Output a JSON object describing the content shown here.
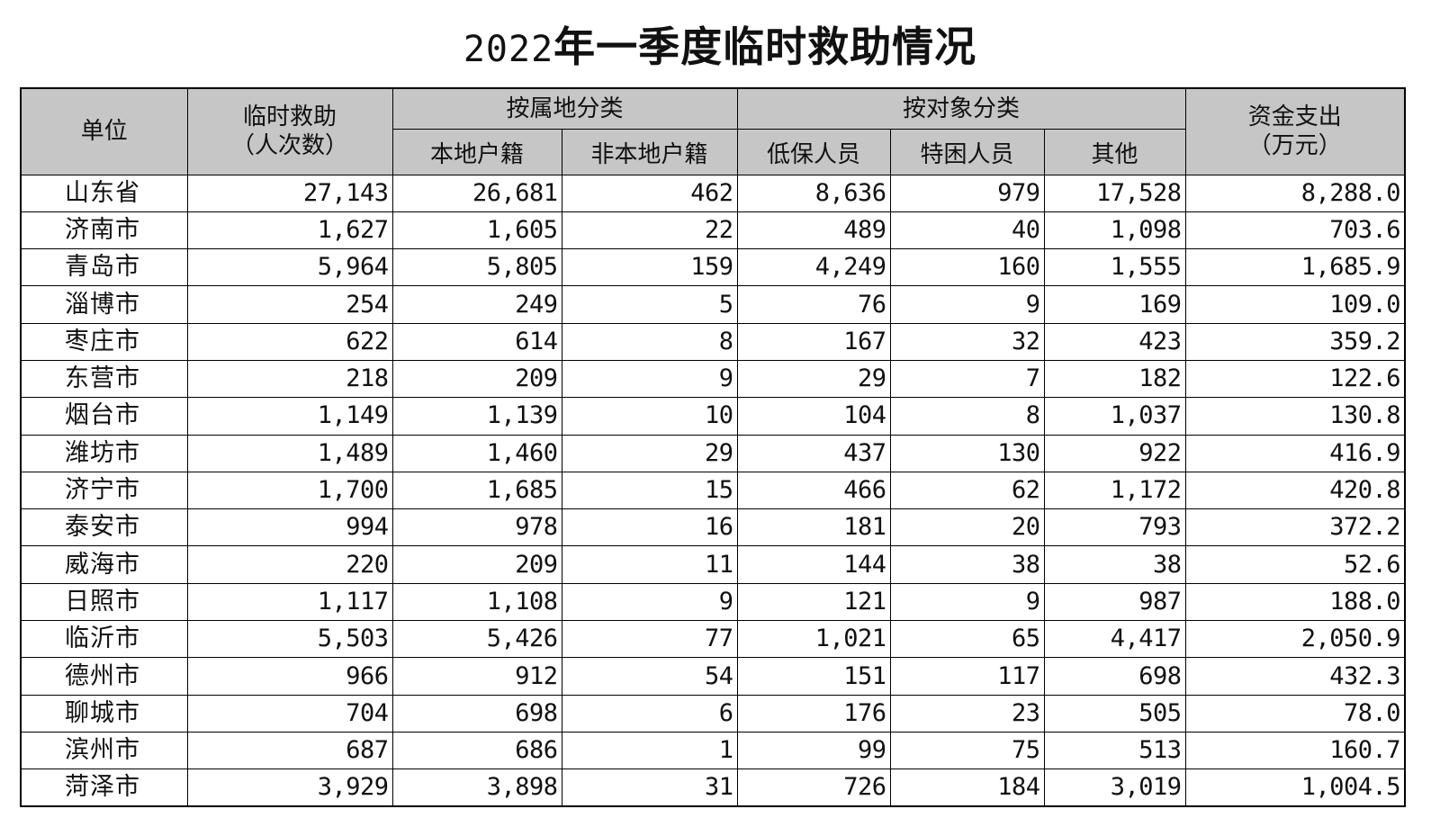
{
  "title": {
    "year": "2022",
    "text": "年一季度临时救助情况"
  },
  "headers": {
    "unit": "单位",
    "assist_line1": "临时救助",
    "assist_line2": "（人次数）",
    "by_residence": "按属地分类",
    "local": "本地户籍",
    "nonlocal": "非本地户籍",
    "by_target": "按对象分类",
    "dibao": "低保人员",
    "tekun": "特困人员",
    "other": "其他",
    "funds_line1": "资金支出",
    "funds_line2": "（万元）"
  },
  "rows": [
    {
      "unit": "山东省",
      "total": "27,143",
      "local": "26,681",
      "nonlocal": "462",
      "dibao": "8,636",
      "tekun": "979",
      "other": "17,528",
      "funds": "8,288.0"
    },
    {
      "unit": "济南市",
      "total": "1,627",
      "local": "1,605",
      "nonlocal": "22",
      "dibao": "489",
      "tekun": "40",
      "other": "1,098",
      "funds": "703.6"
    },
    {
      "unit": "青岛市",
      "total": "5,964",
      "local": "5,805",
      "nonlocal": "159",
      "dibao": "4,249",
      "tekun": "160",
      "other": "1,555",
      "funds": "1,685.9"
    },
    {
      "unit": "淄博市",
      "total": "254",
      "local": "249",
      "nonlocal": "5",
      "dibao": "76",
      "tekun": "9",
      "other": "169",
      "funds": "109.0"
    },
    {
      "unit": "枣庄市",
      "total": "622",
      "local": "614",
      "nonlocal": "8",
      "dibao": "167",
      "tekun": "32",
      "other": "423",
      "funds": "359.2"
    },
    {
      "unit": "东营市",
      "total": "218",
      "local": "209",
      "nonlocal": "9",
      "dibao": "29",
      "tekun": "7",
      "other": "182",
      "funds": "122.6"
    },
    {
      "unit": "烟台市",
      "total": "1,149",
      "local": "1,139",
      "nonlocal": "10",
      "dibao": "104",
      "tekun": "8",
      "other": "1,037",
      "funds": "130.8"
    },
    {
      "unit": "潍坊市",
      "total": "1,489",
      "local": "1,460",
      "nonlocal": "29",
      "dibao": "437",
      "tekun": "130",
      "other": "922",
      "funds": "416.9"
    },
    {
      "unit": "济宁市",
      "total": "1,700",
      "local": "1,685",
      "nonlocal": "15",
      "dibao": "466",
      "tekun": "62",
      "other": "1,172",
      "funds": "420.8"
    },
    {
      "unit": "泰安市",
      "total": "994",
      "local": "978",
      "nonlocal": "16",
      "dibao": "181",
      "tekun": "20",
      "other": "793",
      "funds": "372.2"
    },
    {
      "unit": "威海市",
      "total": "220",
      "local": "209",
      "nonlocal": "11",
      "dibao": "144",
      "tekun": "38",
      "other": "38",
      "funds": "52.6"
    },
    {
      "unit": "日照市",
      "total": "1,117",
      "local": "1,108",
      "nonlocal": "9",
      "dibao": "121",
      "tekun": "9",
      "other": "987",
      "funds": "188.0"
    },
    {
      "unit": "临沂市",
      "total": "5,503",
      "local": "5,426",
      "nonlocal": "77",
      "dibao": "1,021",
      "tekun": "65",
      "other": "4,417",
      "funds": "2,050.9"
    },
    {
      "unit": "德州市",
      "total": "966",
      "local": "912",
      "nonlocal": "54",
      "dibao": "151",
      "tekun": "117",
      "other": "698",
      "funds": "432.3"
    },
    {
      "unit": "聊城市",
      "total": "704",
      "local": "698",
      "nonlocal": "6",
      "dibao": "176",
      "tekun": "23",
      "other": "505",
      "funds": "78.0"
    },
    {
      "unit": "滨州市",
      "total": "687",
      "local": "686",
      "nonlocal": "1",
      "dibao": "99",
      "tekun": "75",
      "other": "513",
      "funds": "160.7"
    },
    {
      "unit": "菏泽市",
      "total": "3,929",
      "local": "3,898",
      "nonlocal": "31",
      "dibao": "726",
      "tekun": "184",
      "other": "3,019",
      "funds": "1,004.5"
    }
  ]
}
